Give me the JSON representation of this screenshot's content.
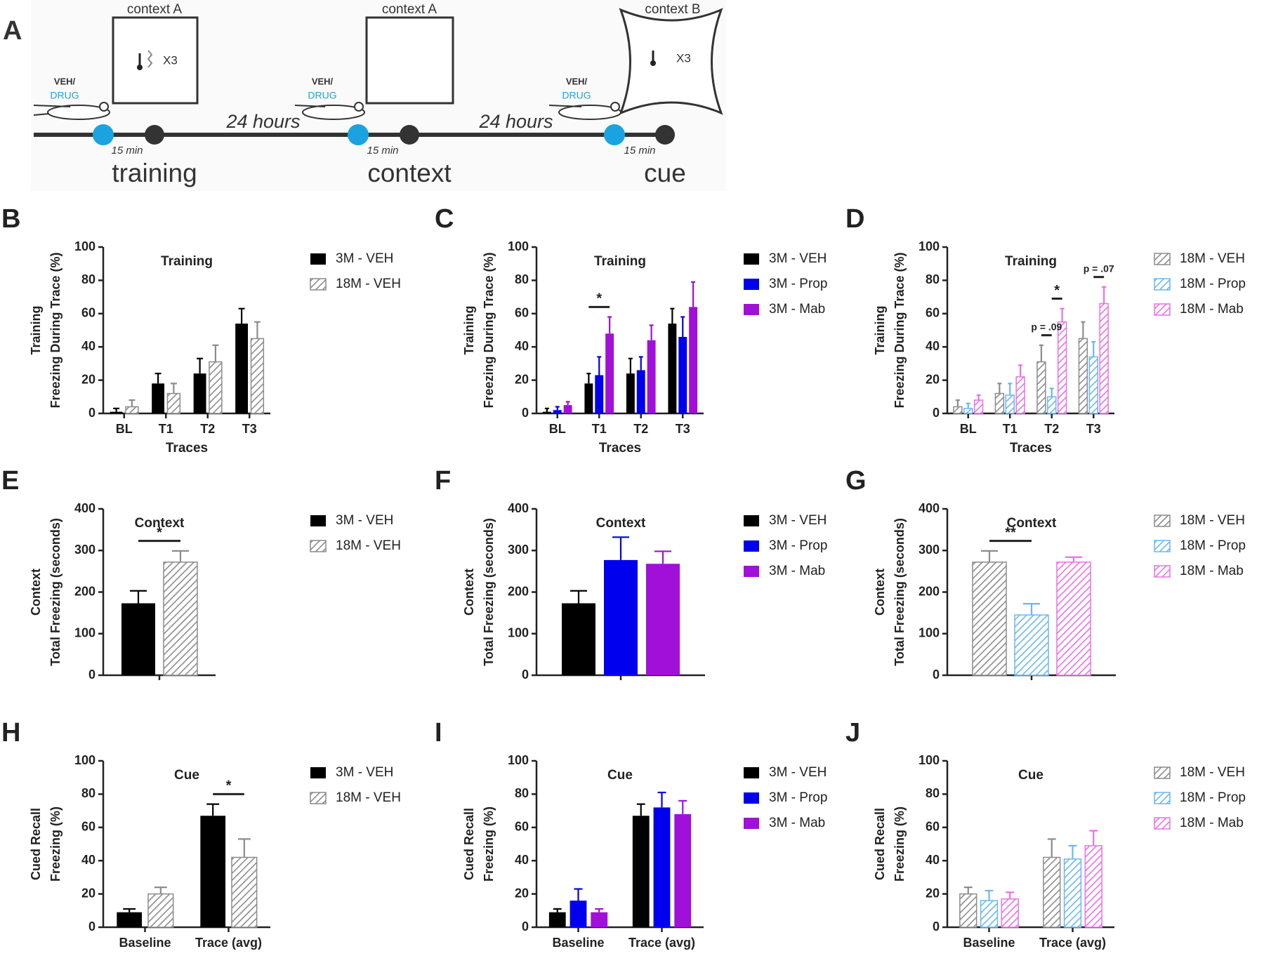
{
  "panel_a": {
    "label": "A",
    "stages": [
      {
        "name": "training",
        "context": "context A",
        "shocks": "X3",
        "injection": [
          "VEH/",
          "DRUG"
        ],
        "delay": "15 min"
      },
      {
        "name": "context",
        "context": "context A",
        "injection": [
          "VEH/",
          "DRUG"
        ],
        "delay": "15 min"
      },
      {
        "name": "cue",
        "context": "context B",
        "shocks": "X3",
        "injection": [
          "VEH/",
          "DRUG"
        ],
        "delay": "15 min"
      }
    ],
    "intervals": [
      "24 hours",
      "24 hours"
    ]
  },
  "chart_data": [
    {
      "label": "B",
      "type": "bar",
      "title": "Training",
      "ylabel": [
        "Training",
        "Freezing During Trace  (%)"
      ],
      "xlabel": "Traces",
      "categories": [
        "BL",
        "T1",
        "T2",
        "T3"
      ],
      "ylim": [
        0,
        100
      ],
      "yticks": [
        0,
        20,
        40,
        60,
        80,
        100
      ],
      "series": [
        {
          "name": "3M - VEH",
          "color": "#000000",
          "values": [
            1,
            18,
            24,
            54
          ],
          "errors": [
            2,
            6,
            9,
            9
          ]
        },
        {
          "name": "18M - VEH",
          "color": "#8c8c8c",
          "hatch": true,
          "values": [
            4,
            12,
            31,
            45
          ],
          "errors": [
            4,
            6,
            10,
            10
          ]
        }
      ],
      "annotations": []
    },
    {
      "label": "C",
      "type": "bar",
      "title": "Training",
      "ylabel": [
        "Training",
        "Freezing During Trace  (%)"
      ],
      "xlabel": "Traces",
      "categories": [
        "BL",
        "T1",
        "T2",
        "T3"
      ],
      "ylim": [
        0,
        100
      ],
      "yticks": [
        0,
        20,
        40,
        60,
        80,
        100
      ],
      "series": [
        {
          "name": "3M - VEH",
          "color": "#000000",
          "values": [
            1,
            18,
            24,
            54
          ],
          "errors": [
            2,
            6,
            9,
            9
          ]
        },
        {
          "name": "3M - Prop",
          "color": "#0000ee",
          "values": [
            2,
            23,
            26,
            46
          ],
          "errors": [
            2,
            11,
            8,
            12
          ]
        },
        {
          "name": "3M - Mab",
          "color": "#a010d8",
          "values": [
            5,
            48,
            44,
            64
          ],
          "errors": [
            2,
            10,
            9,
            15
          ]
        }
      ],
      "annotations": [
        {
          "text": "*",
          "category": "T1",
          "from": "3M - VEH",
          "to": "3M - Mab"
        }
      ]
    },
    {
      "label": "D",
      "type": "bar",
      "title": "Training",
      "ylabel": [
        "Training",
        "Freezing During Trace  (%)"
      ],
      "xlabel": "Traces",
      "categories": [
        "BL",
        "T1",
        "T2",
        "T3"
      ],
      "ylim": [
        0,
        100
      ],
      "yticks": [
        0,
        20,
        40,
        60,
        80,
        100
      ],
      "series": [
        {
          "name": "18M - VEH",
          "color": "#8c8c8c",
          "hatch": true,
          "values": [
            4,
            12,
            31,
            45
          ],
          "errors": [
            4,
            6,
            10,
            10
          ]
        },
        {
          "name": "18M - Prop",
          "color": "#6ab8ee",
          "hatch": true,
          "values": [
            3,
            11,
            10,
            34
          ],
          "errors": [
            3,
            7,
            5,
            9
          ]
        },
        {
          "name": "18M - Mab",
          "color": "#ee6ee8",
          "hatch": true,
          "values": [
            8,
            22,
            55,
            66
          ],
          "errors": [
            3,
            7,
            8,
            10
          ]
        }
      ],
      "annotations": [
        {
          "text": "p = .09",
          "category": "T2",
          "from": "18M - VEH",
          "to": "18M - Prop"
        },
        {
          "text": "*",
          "category": "T2",
          "from": "18M - Prop",
          "to": "18M - Mab"
        },
        {
          "text": "p = .07",
          "category": "T3",
          "from": "18M - Prop",
          "to": "18M - Mab"
        }
      ]
    },
    {
      "label": "E",
      "type": "bar",
      "title": "Context",
      "ylabel": [
        "Context",
        "Total Freezing (seconds)"
      ],
      "categories": [
        null
      ],
      "ylim": [
        0,
        400
      ],
      "yticks": [
        0,
        100,
        200,
        300,
        400
      ],
      "series": [
        {
          "name": "3M - VEH",
          "color": "#000000",
          "values": [
            173
          ],
          "errors": [
            30
          ]
        },
        {
          "name": "18M - VEH",
          "color": "#8c8c8c",
          "hatch": true,
          "values": [
            272
          ],
          "errors": [
            27
          ]
        }
      ],
      "annotations": [
        {
          "text": "*",
          "from": "3M - VEH",
          "to": "18M - VEH"
        }
      ]
    },
    {
      "label": "F",
      "type": "bar",
      "title": "Context",
      "ylabel": [
        "Context",
        "Total Freezing (seconds)"
      ],
      "categories": [
        null
      ],
      "ylim": [
        0,
        400
      ],
      "yticks": [
        0,
        100,
        200,
        300,
        400
      ],
      "series": [
        {
          "name": "3M - VEH",
          "color": "#000000",
          "values": [
            173
          ],
          "errors": [
            30
          ]
        },
        {
          "name": "3M - Prop",
          "color": "#0000ee",
          "values": [
            277
          ],
          "errors": [
            55
          ]
        },
        {
          "name": "3M - Mab",
          "color": "#a010d8",
          "values": [
            268
          ],
          "errors": [
            30
          ]
        }
      ],
      "annotations": []
    },
    {
      "label": "G",
      "type": "bar",
      "title": "Context",
      "ylabel": [
        "Context",
        "Total Freezing (seconds)"
      ],
      "categories": [
        null
      ],
      "ylim": [
        0,
        400
      ],
      "yticks": [
        0,
        100,
        200,
        300,
        400
      ],
      "series": [
        {
          "name": "18M - VEH",
          "color": "#8c8c8c",
          "hatch": true,
          "values": [
            272
          ],
          "errors": [
            27
          ]
        },
        {
          "name": "18M - Prop",
          "color": "#6ab8ee",
          "hatch": true,
          "values": [
            145
          ],
          "errors": [
            27
          ]
        },
        {
          "name": "18M - Mab",
          "color": "#ee6ee8",
          "hatch": true,
          "values": [
            272
          ],
          "errors": [
            12
          ]
        }
      ],
      "annotations": [
        {
          "text": "**",
          "from": "18M - VEH",
          "to": "18M - Prop"
        }
      ]
    },
    {
      "label": "H",
      "type": "bar",
      "title": "Cue",
      "ylabel": [
        "Cued Recall",
        "Freezing (%)"
      ],
      "categories": [
        "Baseline",
        "Trace (avg)"
      ],
      "ylim": [
        0,
        100
      ],
      "yticks": [
        0,
        20,
        40,
        60,
        80,
        100
      ],
      "series": [
        {
          "name": "3M - VEH",
          "color": "#000000",
          "values": [
            9,
            67
          ],
          "errors": [
            2,
            7
          ]
        },
        {
          "name": "18M - VEH",
          "color": "#8c8c8c",
          "hatch": true,
          "values": [
            20,
            42
          ],
          "errors": [
            4,
            11
          ]
        }
      ],
      "annotations": [
        {
          "text": "*",
          "category": "Trace (avg)",
          "from": "3M - VEH",
          "to": "18M - VEH"
        }
      ]
    },
    {
      "label": "I",
      "type": "bar",
      "title": "Cue",
      "ylabel": [
        "Cued Recall",
        "Freezing (%)"
      ],
      "categories": [
        "Baseline",
        "Trace (avg)"
      ],
      "ylim": [
        0,
        100
      ],
      "yticks": [
        0,
        20,
        40,
        60,
        80,
        100
      ],
      "series": [
        {
          "name": "3M - VEH",
          "color": "#000000",
          "values": [
            9,
            67
          ],
          "errors": [
            2,
            7
          ]
        },
        {
          "name": "3M - Prop",
          "color": "#0000ee",
          "values": [
            16,
            72
          ],
          "errors": [
            7,
            9
          ]
        },
        {
          "name": "3M - Mab",
          "color": "#a010d8",
          "values": [
            9,
            68
          ],
          "errors": [
            2,
            8
          ]
        }
      ],
      "annotations": []
    },
    {
      "label": "J",
      "type": "bar",
      "title": "Cue",
      "ylabel": [
        "Cued Recall",
        "Freezing (%)"
      ],
      "categories": [
        "Baseline",
        "Trace (avg)"
      ],
      "ylim": [
        0,
        100
      ],
      "yticks": [
        0,
        20,
        40,
        60,
        80,
        100
      ],
      "series": [
        {
          "name": "18M - VEH",
          "color": "#8c8c8c",
          "hatch": true,
          "values": [
            20,
            42
          ],
          "errors": [
            4,
            11
          ]
        },
        {
          "name": "18M - Prop",
          "color": "#6ab8ee",
          "hatch": true,
          "values": [
            16,
            41
          ],
          "errors": [
            6,
            8
          ]
        },
        {
          "name": "18M - Mab",
          "color": "#ee6ee8",
          "hatch": true,
          "values": [
            17,
            49
          ],
          "errors": [
            4,
            9
          ]
        }
      ],
      "annotations": []
    }
  ]
}
